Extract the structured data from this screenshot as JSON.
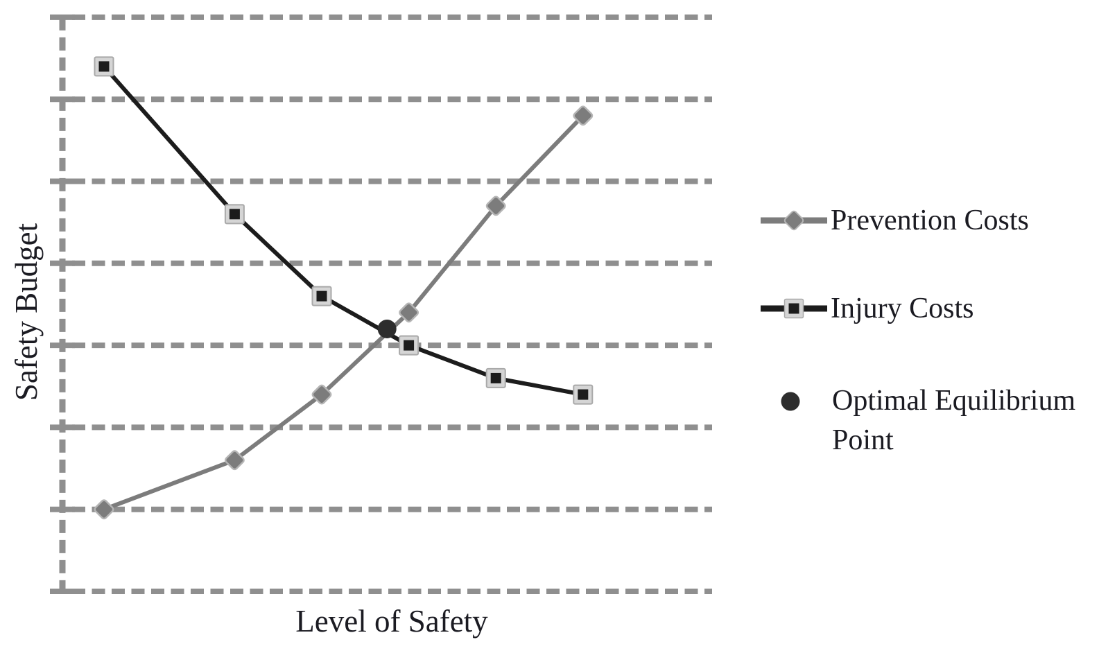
{
  "figure": {
    "xlabel": "Level of Safety",
    "ylabel": "Safety Budget"
  },
  "legend": {
    "position": "right",
    "items": [
      {
        "label": "Prevention Costs",
        "marker": "gray-line-with-diamond"
      },
      {
        "label": "Injury Costs",
        "marker": "black-line-with-square"
      },
      {
        "label": "Optimal Equilibrium Point",
        "marker": "filled-dark-circle"
      }
    ]
  },
  "chart_data": {
    "type": "line",
    "title": "",
    "xlabel": "Level of Safety",
    "ylabel": "Safety Budget",
    "x": [
      1,
      2.5,
      3.5,
      4.5,
      5.5,
      6.5
    ],
    "series": [
      {
        "name": "Prevention Costs",
        "values": [
          1.0,
          1.6,
          2.4,
          3.4,
          4.7,
          5.8
        ],
        "color": "#7c7c7c",
        "marker": "diamond",
        "trend": "increasing"
      },
      {
        "name": "Injury Costs",
        "values": [
          6.4,
          4.6,
          3.6,
          3.0,
          2.6,
          2.4
        ],
        "color": "#1c1c1c",
        "marker": "square",
        "trend": "decreasing"
      }
    ],
    "annotations": [
      {
        "name": "Optimal Equilibrium Point",
        "x": 4.25,
        "y": 3.2,
        "marker": "circle",
        "color": "#2d2d2d",
        "note": "intersection of the two cost curves"
      }
    ],
    "axes": {
      "ylim": [
        0,
        7
      ],
      "y_gridlines": 8,
      "grid_style": "dashed",
      "x_tick_labels": "none",
      "y_tick_labels": "none",
      "y_axis_style": "dashed-with-ticks"
    }
  },
  "colors": {
    "background": "#ffffff",
    "grid": "#8f8f8f",
    "prevention": "#7c7c7c",
    "injury": "#1c1c1c",
    "marker_fill": "#d5d5d5",
    "marker_edge": "#a9a9a9",
    "diamond_edge": "#b5b5b5",
    "equilibrium": "#2d2d2d",
    "text": "#1b1b22"
  }
}
